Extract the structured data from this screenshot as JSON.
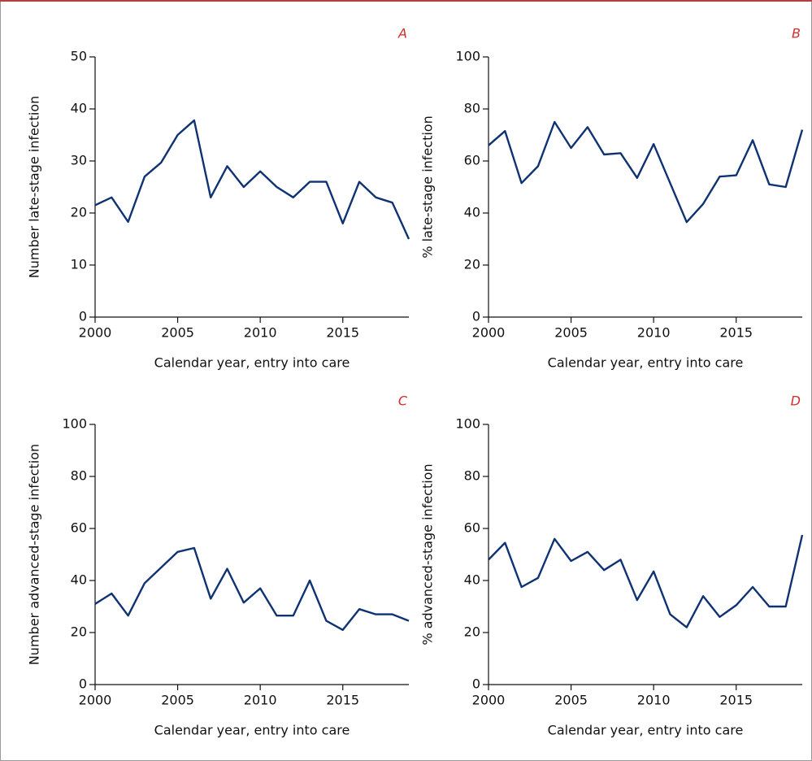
{
  "chart_data": [
    {
      "type": "line",
      "panel_label": "A",
      "x_label": "Calendar year, entry into care",
      "y_label": "Number late-stage infection",
      "x": [
        2000,
        2001,
        2002,
        2003,
        2004,
        2005,
        2006,
        2007,
        2008,
        2009,
        2010,
        2011,
        2012,
        2013,
        2014,
        2015,
        2016,
        2017,
        2018,
        2019
      ],
      "series": [
        {
          "color": "#0f3273",
          "values": [
            21.5,
            23,
            18.3,
            27,
            29.7,
            35,
            37.8,
            23,
            29,
            25,
            28,
            25,
            23,
            26,
            26,
            18,
            26,
            23,
            22,
            15
          ]
        }
      ],
      "xlim": [
        2000,
        2019
      ],
      "xticks": [
        2000,
        2005,
        2010,
        2015
      ],
      "ylim": [
        0,
        50
      ],
      "yticks": [
        0,
        10,
        20,
        30,
        40,
        50
      ]
    },
    {
      "type": "line",
      "panel_label": "B",
      "x_label": "Calendar year, entry into care",
      "y_label": "% late-stage infection",
      "x": [
        2000,
        2001,
        2002,
        2003,
        2004,
        2005,
        2006,
        2007,
        2008,
        2009,
        2010,
        2011,
        2012,
        2013,
        2014,
        2015,
        2016,
        2017,
        2018,
        2019
      ],
      "series": [
        {
          "color": "#0f3273",
          "values": [
            66,
            71.5,
            51.5,
            58,
            75,
            65,
            73,
            62.5,
            63,
            53.5,
            66.5,
            51.5,
            36.5,
            43.5,
            54,
            54.5,
            68,
            51,
            50,
            72
          ]
        }
      ],
      "xlim": [
        2000,
        2019
      ],
      "xticks": [
        2000,
        2005,
        2010,
        2015
      ],
      "ylim": [
        0,
        100
      ],
      "yticks": [
        0,
        20,
        40,
        60,
        80,
        100
      ]
    },
    {
      "type": "line",
      "panel_label": "C",
      "x_label": "Calendar year, entry into care",
      "y_label": "Number advanced-stage infection",
      "x": [
        2000,
        2001,
        2002,
        2003,
        2004,
        2005,
        2006,
        2007,
        2008,
        2009,
        2010,
        2011,
        2012,
        2013,
        2014,
        2015,
        2016,
        2017,
        2018,
        2019
      ],
      "series": [
        {
          "color": "#0f3273",
          "values": [
            31,
            35,
            26.5,
            39,
            45,
            51,
            52.5,
            33,
            44.5,
            31.5,
            37,
            26.5,
            26.5,
            40,
            24.5,
            21,
            29,
            27,
            27,
            24.5
          ]
        }
      ],
      "xlim": [
        2000,
        2019
      ],
      "xticks": [
        2000,
        2005,
        2010,
        2015
      ],
      "ylim": [
        0,
        100
      ],
      "yticks": [
        0,
        20,
        40,
        60,
        80,
        100
      ]
    },
    {
      "type": "line",
      "panel_label": "D",
      "x_label": "Calendar year, entry into care",
      "y_label": "% advanced-stage infection",
      "x": [
        2000,
        2001,
        2002,
        2003,
        2004,
        2005,
        2006,
        2007,
        2008,
        2009,
        2010,
        2011,
        2012,
        2013,
        2014,
        2015,
        2016,
        2017,
        2018,
        2019
      ],
      "series": [
        {
          "color": "#0f3273",
          "values": [
            48,
            54.5,
            37.5,
            41,
            56,
            47.5,
            51,
            44,
            48,
            32.5,
            43.5,
            27,
            22,
            34,
            26,
            30.5,
            37.5,
            30,
            30,
            57.5
          ]
        }
      ],
      "xlim": [
        2000,
        2019
      ],
      "xticks": [
        2000,
        2005,
        2010,
        2015
      ],
      "ylim": [
        0,
        100
      ],
      "yticks": [
        0,
        20,
        40,
        60,
        80,
        100
      ]
    }
  ]
}
